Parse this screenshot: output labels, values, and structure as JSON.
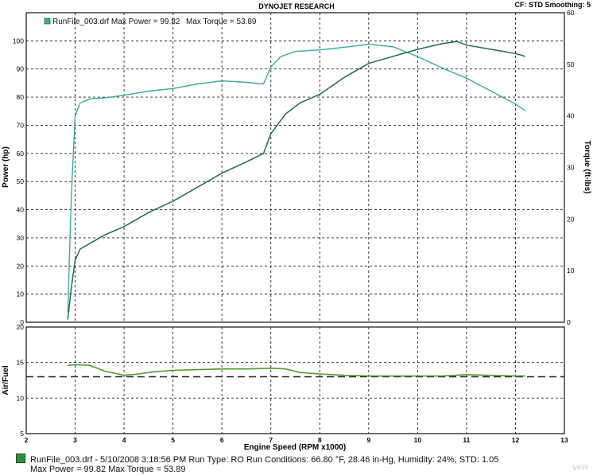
{
  "header": {
    "title": "DYNOJET RESEARCH",
    "settings": "CF: STD  Smoothing: 5"
  },
  "legend": {
    "run_label": "RunFile_003.drf Max Power = 99.82",
    "torque_label": "Max Torque = 53.89"
  },
  "footer": {
    "line1": "RunFile_003.drf - 5/10/2008 3:18:56 PM  Run Type: RO  Run Conditions: 66.80 °F, 28.46 in-Hg,  Humidity:  24%, STD: 1.05",
    "line2": "Max Power = 99.82  Max Torque = 53.89"
  },
  "watermark": "VFR",
  "colors": {
    "power": "#1f6b48",
    "torque": "#3aa9a0",
    "afr": "#4f9a32",
    "target": "#222222",
    "grid": "#222222"
  },
  "chart_data": [
    {
      "type": "line",
      "xlabel": "Engine Speed (RPM x1000)",
      "ylabel": "Power (hp)",
      "y2label": "Torque (ft-lbs)",
      "xlim": [
        2,
        13
      ],
      "ylim": [
        0,
        110
      ],
      "y2lim": [
        0,
        60
      ],
      "x_ticks": [
        "2",
        "3",
        "4",
        "5",
        "6",
        "7",
        "8",
        "9",
        "10",
        "11",
        "12",
        "13"
      ],
      "y_ticks": [
        "0",
        "10",
        "20",
        "30",
        "40",
        "50",
        "60",
        "70",
        "80",
        "90",
        "100"
      ],
      "y2_ticks": [
        "0",
        "10",
        "20",
        "30",
        "40",
        "50",
        "60"
      ],
      "grid": true,
      "legend_position": "top-left",
      "series": [
        {
          "name": "Power",
          "axis": "left",
          "x": [
            2.85,
            2.92,
            3.0,
            3.1,
            3.3,
            3.6,
            4.0,
            4.5,
            5.0,
            5.5,
            6.0,
            6.5,
            6.85,
            7.0,
            7.3,
            7.6,
            8.0,
            8.5,
            9.0,
            9.5,
            10.0,
            10.5,
            10.8,
            11.0,
            11.5,
            12.0,
            12.2
          ],
          "y": [
            1,
            12,
            22,
            26,
            28,
            31,
            34,
            39,
            43,
            48,
            53,
            57,
            60,
            67,
            74,
            78,
            81,
            87,
            92,
            94.5,
            97,
            99,
            99.8,
            98.5,
            97,
            95.5,
            94.5
          ]
        },
        {
          "name": "Torque",
          "axis": "right",
          "x": [
            2.85,
            2.92,
            3.0,
            3.1,
            3.3,
            3.6,
            4.0,
            4.5,
            5.0,
            5.5,
            6.0,
            6.5,
            6.85,
            7.0,
            7.2,
            7.5,
            8.0,
            8.5,
            9.0,
            9.5,
            10.0,
            10.5,
            11.0,
            11.5,
            12.0,
            12.2
          ],
          "y": [
            2,
            24,
            40,
            42.5,
            43.3,
            43.5,
            44,
            44.8,
            45.3,
            46.2,
            46.8,
            46.5,
            46.2,
            49.5,
            51.5,
            52.5,
            52.8,
            53.3,
            53.89,
            53.4,
            51.5,
            49.3,
            47.3,
            44.8,
            42.3,
            41
          ]
        }
      ]
    },
    {
      "type": "line",
      "xlabel": "Engine Speed (RPM x1000)",
      "ylabel": "Air/Fuel",
      "xlim": [
        2,
        13
      ],
      "ylim": [
        5,
        20
      ],
      "y_ticks": [
        "5",
        "10",
        "15",
        "20"
      ],
      "x_ticks": [
        "2",
        "3",
        "4",
        "5",
        "6",
        "7",
        "8",
        "9",
        "10",
        "11",
        "12",
        "13"
      ],
      "grid": true,
      "series": [
        {
          "name": "Air/Fuel",
          "x": [
            2.85,
            3.0,
            3.3,
            3.6,
            4.0,
            4.3,
            4.6,
            5.0,
            5.5,
            6.0,
            6.5,
            7.0,
            7.3,
            7.6,
            8.0,
            8.5,
            9.0,
            9.5,
            10.0,
            10.5,
            11.0,
            11.5,
            12.0,
            12.2
          ],
          "y": [
            14.6,
            14.7,
            14.6,
            13.8,
            13.2,
            13.4,
            13.7,
            13.9,
            14.0,
            14.1,
            14.1,
            14.2,
            14.1,
            13.6,
            13.4,
            13.2,
            13.1,
            13.1,
            13.1,
            13.1,
            13.3,
            13.2,
            13.1,
            13.1
          ]
        },
        {
          "name": "Target",
          "x": [
            2,
            13
          ],
          "y": [
            13.0,
            13.0
          ]
        }
      ]
    }
  ]
}
